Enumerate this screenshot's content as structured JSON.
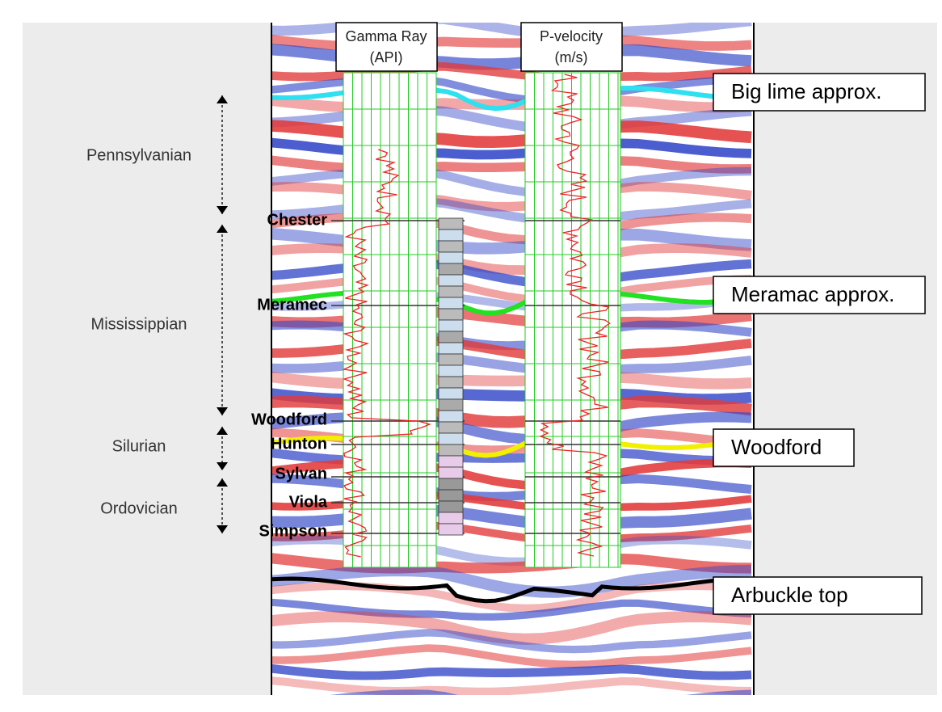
{
  "log_titles": [
    [
      "Gamma Ray",
      "(API)"
    ],
    [
      "P-velocity",
      "(m/s)"
    ]
  ],
  "periods": [
    "Pennsylvanian",
    "Mississippian",
    "Silurian",
    "Ordovician"
  ],
  "formations": [
    "Chester",
    "Meramec",
    "Woodford",
    "Hunton",
    "Sylvan",
    "Viola",
    "Simpson"
  ],
  "horizons": [
    "Big lime approx.",
    "Meramac approx.",
    "Woodford",
    "Arbuckle top"
  ]
}
